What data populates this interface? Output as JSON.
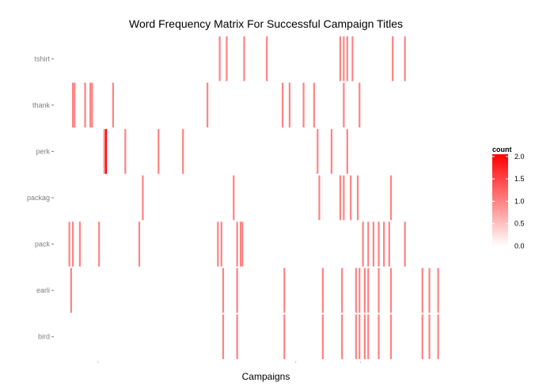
{
  "chart_data": {
    "type": "heatmap",
    "title": "Word Frequency Matrix For Successful Campaign Titles",
    "xlabel": "Campaigns",
    "ylabel": "",
    "rows": [
      "tshirt",
      "thank",
      "perk",
      "packag",
      "pack",
      "earli",
      "bird"
    ],
    "n_campaigns": 240,
    "x_tick_positions": [
      25,
      138,
      175
    ],
    "legend": {
      "title": "count",
      "ticks": [
        "2.0",
        "1.5",
        "1.0",
        "0.5",
        "0.0"
      ],
      "tick_values": [
        2.0,
        1.5,
        1.0,
        0.5,
        0.0
      ],
      "min": 0,
      "max": 2.05,
      "low_color": "#ffffff",
      "high_color": "#ff0000",
      "position": "right"
    },
    "cells": [
      {
        "row": "tshirt",
        "campaign": 94,
        "count": 1
      },
      {
        "row": "tshirt",
        "campaign": 98,
        "count": 1
      },
      {
        "row": "tshirt",
        "campaign": 108,
        "count": 1
      },
      {
        "row": "tshirt",
        "campaign": 121,
        "count": 1
      },
      {
        "row": "tshirt",
        "campaign": 163,
        "count": 1
      },
      {
        "row": "tshirt",
        "campaign": 165,
        "count": 1
      },
      {
        "row": "tshirt",
        "campaign": 167,
        "count": 1
      },
      {
        "row": "tshirt",
        "campaign": 170,
        "count": 1
      },
      {
        "row": "tshirt",
        "campaign": 193,
        "count": 1
      },
      {
        "row": "tshirt",
        "campaign": 200,
        "count": 1
      },
      {
        "row": "thank",
        "campaign": 10,
        "count": 1
      },
      {
        "row": "thank",
        "campaign": 11,
        "count": 1
      },
      {
        "row": "thank",
        "campaign": 17,
        "count": 1
      },
      {
        "row": "thank",
        "campaign": 20,
        "count": 1
      },
      {
        "row": "thank",
        "campaign": 21,
        "count": 1
      },
      {
        "row": "thank",
        "campaign": 33,
        "count": 1
      },
      {
        "row": "thank",
        "campaign": 87,
        "count": 1
      },
      {
        "row": "thank",
        "campaign": 130,
        "count": 1
      },
      {
        "row": "thank",
        "campaign": 134,
        "count": 1
      },
      {
        "row": "thank",
        "campaign": 142,
        "count": 1
      },
      {
        "row": "thank",
        "campaign": 148,
        "count": 1
      },
      {
        "row": "thank",
        "campaign": 165,
        "count": 1
      },
      {
        "row": "thank",
        "campaign": 174,
        "count": 1
      },
      {
        "row": "perk",
        "campaign": 28,
        "count": 1
      },
      {
        "row": "perk",
        "campaign": 29,
        "count": 2
      },
      {
        "row": "perk",
        "campaign": 40,
        "count": 1
      },
      {
        "row": "perk",
        "campaign": 59,
        "count": 1
      },
      {
        "row": "perk",
        "campaign": 73,
        "count": 1
      },
      {
        "row": "perk",
        "campaign": 150,
        "count": 1
      },
      {
        "row": "perk",
        "campaign": 158,
        "count": 1
      },
      {
        "row": "perk",
        "campaign": 167,
        "count": 1
      },
      {
        "row": "packag",
        "campaign": 50,
        "count": 1
      },
      {
        "row": "packag",
        "campaign": 102,
        "count": 1
      },
      {
        "row": "packag",
        "campaign": 151,
        "count": 1
      },
      {
        "row": "packag",
        "campaign": 163,
        "count": 1
      },
      {
        "row": "packag",
        "campaign": 165,
        "count": 1
      },
      {
        "row": "packag",
        "campaign": 169,
        "count": 1
      },
      {
        "row": "packag",
        "campaign": 173,
        "count": 1
      },
      {
        "row": "packag",
        "campaign": 192,
        "count": 1
      },
      {
        "row": "pack",
        "campaign": 8,
        "count": 1
      },
      {
        "row": "pack",
        "campaign": 10,
        "count": 1
      },
      {
        "row": "pack",
        "campaign": 14,
        "count": 1
      },
      {
        "row": "pack",
        "campaign": 25,
        "count": 1
      },
      {
        "row": "pack",
        "campaign": 48,
        "count": 1
      },
      {
        "row": "pack",
        "campaign": 93,
        "count": 1
      },
      {
        "row": "pack",
        "campaign": 95,
        "count": 1
      },
      {
        "row": "pack",
        "campaign": 104,
        "count": 1
      },
      {
        "row": "pack",
        "campaign": 106,
        "count": 1
      },
      {
        "row": "pack",
        "campaign": 107,
        "count": 1
      },
      {
        "row": "pack",
        "campaign": 176,
        "count": 1
      },
      {
        "row": "pack",
        "campaign": 179,
        "count": 1
      },
      {
        "row": "pack",
        "campaign": 182,
        "count": 1
      },
      {
        "row": "pack",
        "campaign": 185,
        "count": 1
      },
      {
        "row": "pack",
        "campaign": 188,
        "count": 1
      },
      {
        "row": "pack",
        "campaign": 191,
        "count": 1
      },
      {
        "row": "pack",
        "campaign": 200,
        "count": 1
      },
      {
        "row": "earli",
        "campaign": 9,
        "count": 1
      },
      {
        "row": "earli",
        "campaign": 96,
        "count": 1
      },
      {
        "row": "earli",
        "campaign": 104,
        "count": 1
      },
      {
        "row": "earli",
        "campaign": 131,
        "count": 1
      },
      {
        "row": "earli",
        "campaign": 153,
        "count": 1
      },
      {
        "row": "earli",
        "campaign": 164,
        "count": 1
      },
      {
        "row": "earli",
        "campaign": 172,
        "count": 1
      },
      {
        "row": "earli",
        "campaign": 174,
        "count": 1
      },
      {
        "row": "earli",
        "campaign": 177,
        "count": 1
      },
      {
        "row": "earli",
        "campaign": 179,
        "count": 1
      },
      {
        "row": "earli",
        "campaign": 185,
        "count": 1
      },
      {
        "row": "earli",
        "campaign": 192,
        "count": 1
      },
      {
        "row": "earli",
        "campaign": 210,
        "count": 1
      },
      {
        "row": "earli",
        "campaign": 214,
        "count": 1
      },
      {
        "row": "earli",
        "campaign": 219,
        "count": 1
      },
      {
        "row": "bird",
        "campaign": 96,
        "count": 1
      },
      {
        "row": "bird",
        "campaign": 104,
        "count": 1
      },
      {
        "row": "bird",
        "campaign": 131,
        "count": 1
      },
      {
        "row": "bird",
        "campaign": 153,
        "count": 1
      },
      {
        "row": "bird",
        "campaign": 164,
        "count": 1
      },
      {
        "row": "bird",
        "campaign": 172,
        "count": 1
      },
      {
        "row": "bird",
        "campaign": 174,
        "count": 1
      },
      {
        "row": "bird",
        "campaign": 177,
        "count": 1
      },
      {
        "row": "bird",
        "campaign": 179,
        "count": 1
      },
      {
        "row": "bird",
        "campaign": 185,
        "count": 1
      },
      {
        "row": "bird",
        "campaign": 192,
        "count": 1
      },
      {
        "row": "bird",
        "campaign": 210,
        "count": 1
      },
      {
        "row": "bird",
        "campaign": 214,
        "count": 1
      },
      {
        "row": "bird",
        "campaign": 219,
        "count": 1
      }
    ]
  }
}
